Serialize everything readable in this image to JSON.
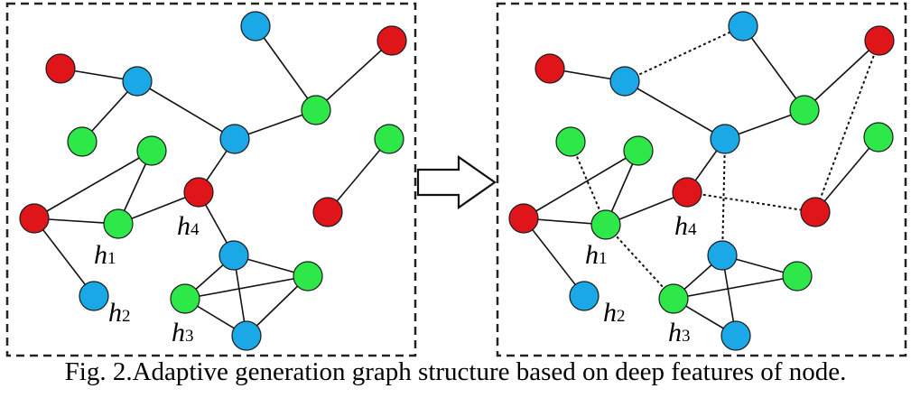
{
  "colors": {
    "red": "#e0151a",
    "blue": "#1aa8e6",
    "green": "#2ee84a",
    "edge": "#111111",
    "frame": "#222222"
  },
  "node_labels": {
    "h1": {
      "base": "h",
      "sub": "1"
    },
    "h2": {
      "base": "h",
      "sub": "2"
    },
    "h3": {
      "base": "h",
      "sub": "3"
    },
    "h4": {
      "base": "h",
      "sub": "4"
    }
  },
  "arrow": {
    "direction": "right",
    "style": "outline"
  },
  "caption": "Fig. 2.Adaptive generation graph structure based on deep features of node."
}
